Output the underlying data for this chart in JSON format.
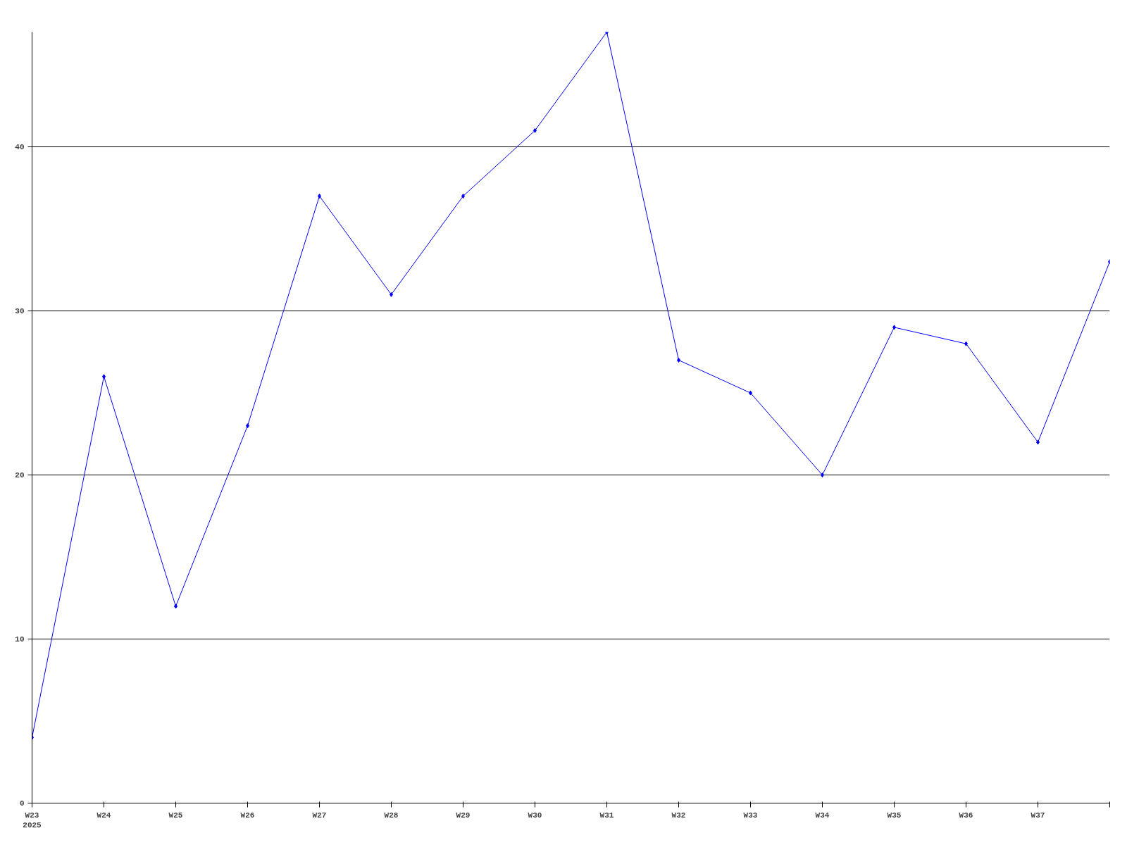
{
  "chart_data": {
    "type": "line",
    "categories": [
      "W23\n2025",
      "W24",
      "W25",
      "W26",
      "W27",
      "W28",
      "W29",
      "W30",
      "W31",
      "W32",
      "W33",
      "W34",
      "W35",
      "W36",
      "W37",
      null
    ],
    "series": [
      {
        "color": "#0000ff",
        "values": [
          4,
          26,
          12,
          23,
          37,
          31,
          37,
          41,
          47,
          27,
          25,
          20,
          29,
          28,
          22,
          33
        ]
      }
    ],
    "ylim": [
      0,
      47
    ],
    "yticks": [
      0,
      10,
      20,
      30,
      40
    ],
    "grid": "y",
    "marker": "diamond",
    "line_style": "solid"
  }
}
